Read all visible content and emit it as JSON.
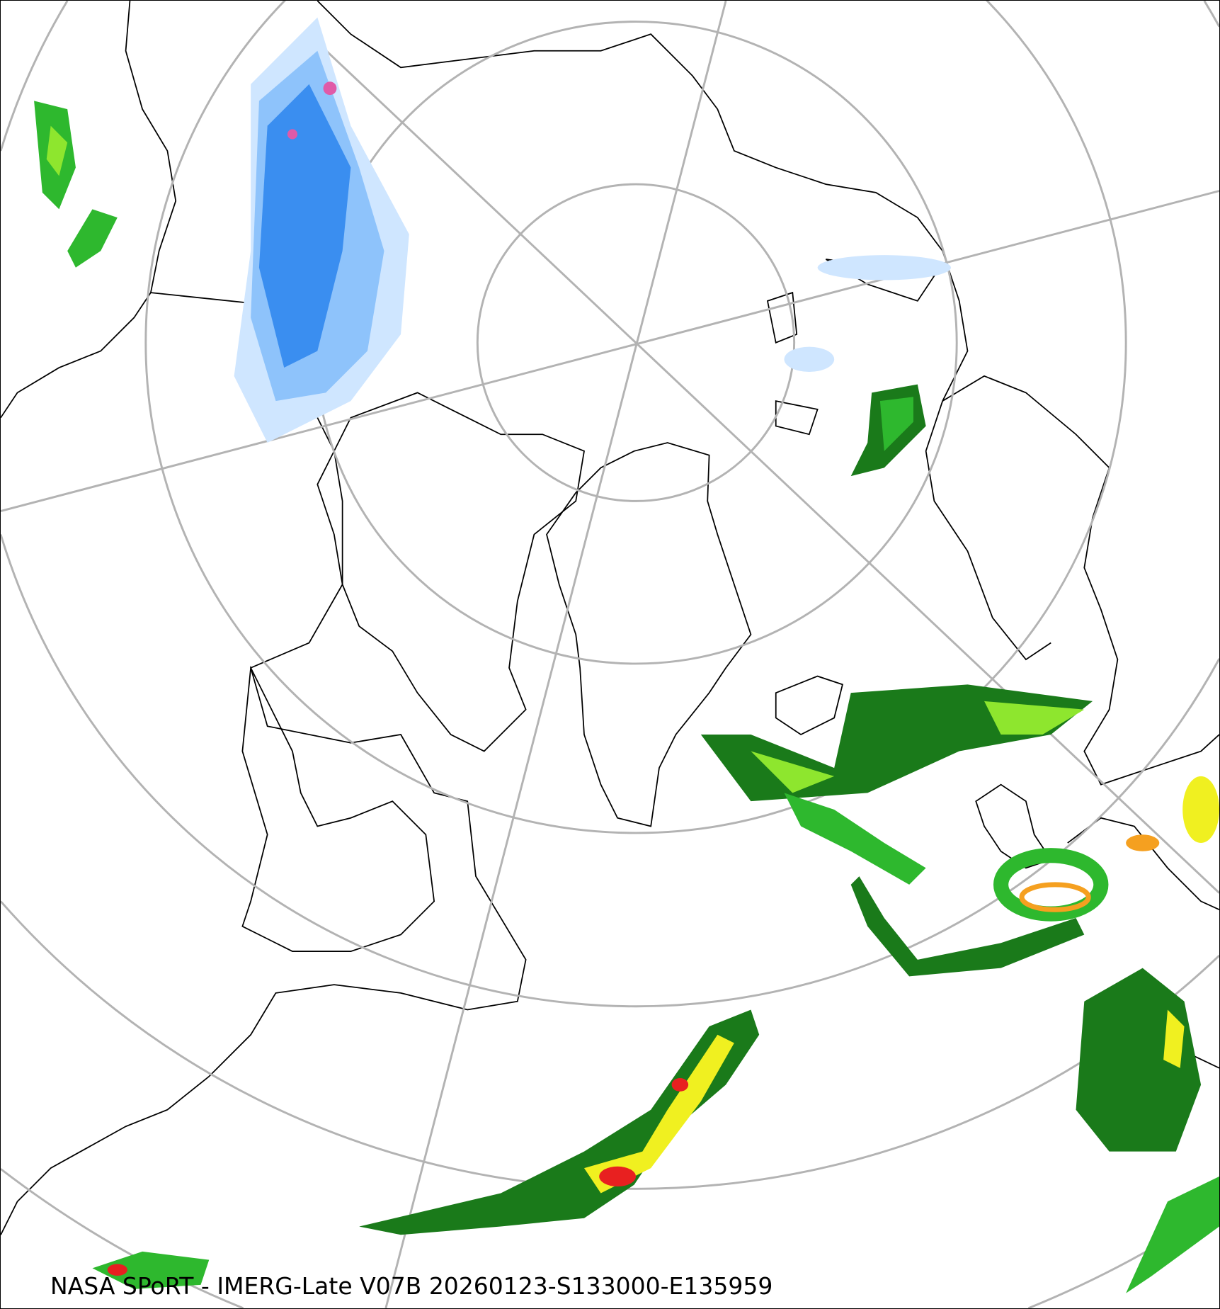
{
  "caption": "NASA SPoRT - IMERG-Late V07B 20260123-S133000-E135959",
  "map": {
    "projection": "north polar stereographic",
    "graticule_color": "#b3b3b3",
    "coastline_color": "#000000",
    "background": "#ffffff"
  },
  "precip_colors": {
    "snow_light": "#cfe6ff",
    "snow_medium": "#8ec3fb",
    "snow_heavy": "#3a8ef0",
    "snow_extreme": "#e05aa8",
    "rain_dark_green": "#1a7a1a",
    "rain_green": "#2eb82e",
    "rain_light_green": "#8ee62e",
    "rain_yellow": "#f0f020",
    "rain_orange": "#f5a020",
    "rain_red": "#e82020"
  }
}
